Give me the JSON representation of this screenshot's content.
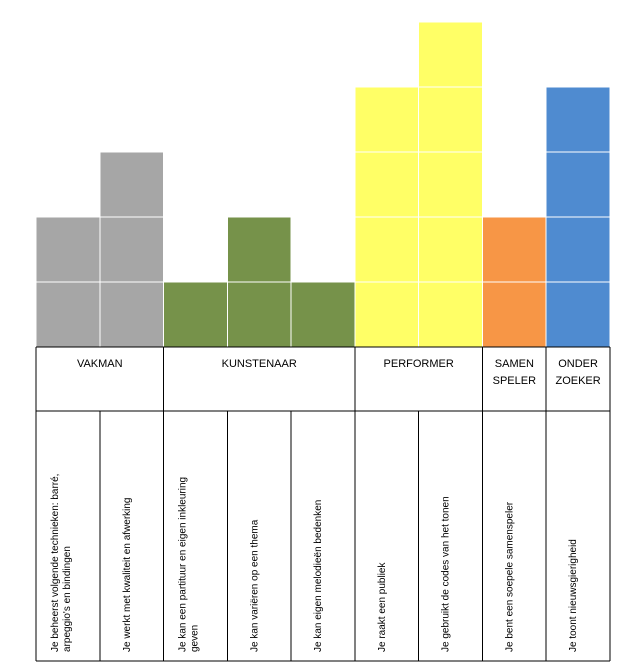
{
  "chart_data": {
    "type": "bar",
    "title": "",
    "xlabel": "",
    "ylabel": "",
    "ylim": [
      0,
      5
    ],
    "grid": false,
    "criteria": [
      {
        "group": "VAKMAN",
        "text": [
          "Je beheerst volgende technieken: barré,",
          "arpeggio's en bindingen"
        ],
        "value": 2,
        "color": "#a6a6a6"
      },
      {
        "group": "VAKMAN",
        "text": [
          "Je werkt met kwaliteit en afwerking"
        ],
        "value": 3,
        "color": "#a6a6a6"
      },
      {
        "group": "KUNSTENAAR",
        "text": [
          "Je kan een partituur en eigen inkleuring",
          "geven"
        ],
        "value": 1,
        "color": "#76924a"
      },
      {
        "group": "KUNSTENAAR",
        "text": [
          "Je kan variëren op een thema"
        ],
        "value": 2,
        "color": "#76924a"
      },
      {
        "group": "KUNSTENAAR",
        "text": [
          "Je kan eigen melodieën bedenken"
        ],
        "value": 1,
        "color": "#76924a"
      },
      {
        "group": "PERFORMER",
        "text": [
          "Je raakt een publiek"
        ],
        "value": 4,
        "color": "#ffff66"
      },
      {
        "group": "PERFORMER",
        "text": [
          "Je gebruikt de codes van het tonen"
        ],
        "value": 5,
        "color": "#ffff66"
      },
      {
        "group": "SAMENSPELER",
        "text": [
          "Je bent een soepele samenspeler"
        ],
        "value": 2,
        "color": "#f79646"
      },
      {
        "group": "ONDERZOEKER",
        "text": [
          "Je toont nieuwsgierigheid"
        ],
        "value": 4,
        "color": "#4f8bd0"
      }
    ],
    "categories": [
      {
        "lines": [
          "VAKMAN"
        ],
        "span": 2
      },
      {
        "lines": [
          "KUNSTENAAR"
        ],
        "span": 3
      },
      {
        "lines": [
          "PERFORMER"
        ],
        "span": 2
      },
      {
        "lines": [
          "SAMEN",
          "SPELER"
        ],
        "span": 1
      },
      {
        "lines": [
          "ONDER",
          "ZOEKER"
        ],
        "span": 1
      }
    ]
  }
}
